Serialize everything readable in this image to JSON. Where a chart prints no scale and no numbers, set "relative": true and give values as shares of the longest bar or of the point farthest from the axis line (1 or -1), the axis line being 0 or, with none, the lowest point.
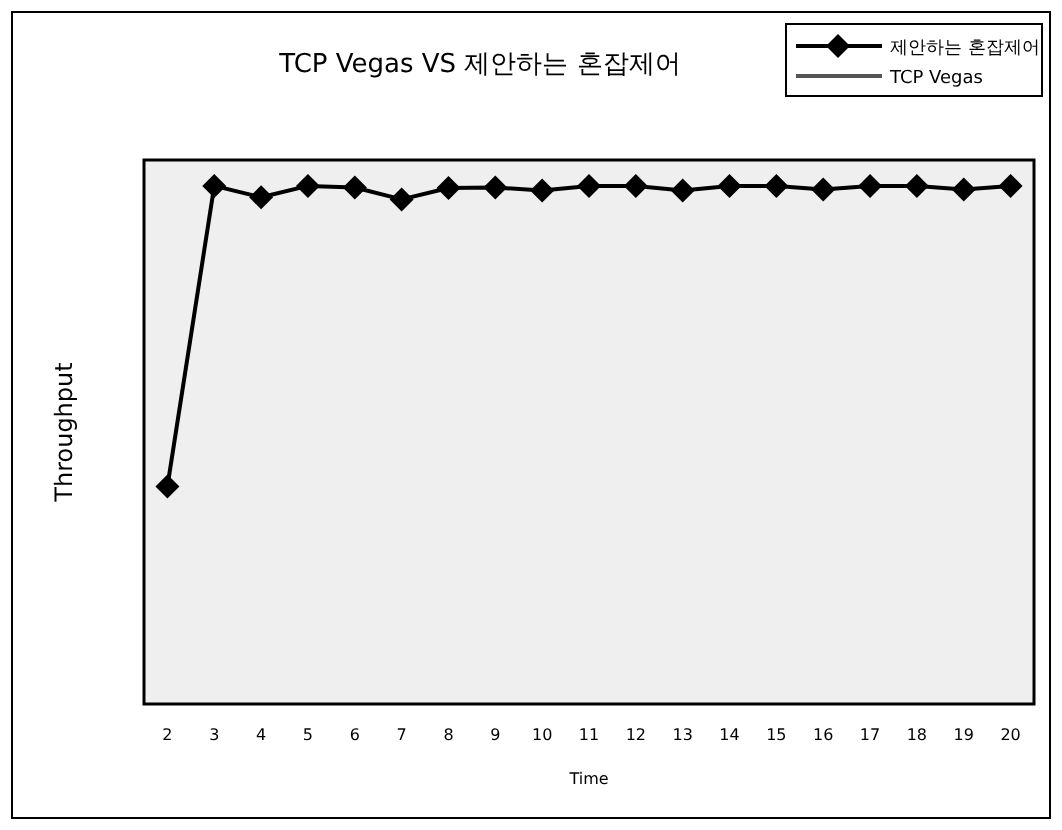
{
  "chart_data": {
    "type": "line",
    "title": "TCP Vegas VS  제안하는 혼잡제어",
    "xlabel": "Time",
    "ylabel": "Throughput",
    "relative": true,
    "legend": "top right",
    "marker": "diamond",
    "line_style": "solid",
    "categories": [
      "2",
      "3",
      "4",
      "5",
      "6",
      "7",
      "8",
      "9",
      "10",
      "11",
      "12",
      "13",
      "14",
      "15",
      "16",
      "17",
      "18",
      "19",
      "20"
    ],
    "series": [
      {
        "name": "제안하는 혼잡제어",
        "color": "#000000",
        "values": [
          0.42,
          1,
          0.978,
          1,
          0.997,
          0.974,
          0.996,
          0.997,
          0.991,
          1,
          1,
          0.991,
          1,
          1,
          0.993,
          1,
          1,
          0.993,
          1
        ]
      },
      {
        "name": "TCP Vegas",
        "color": "#555555",
        "marker": "none",
        "values": [
          null,
          null,
          null,
          null,
          null,
          null,
          null,
          null,
          null,
          null,
          null,
          null,
          null,
          null,
          null,
          null,
          null,
          null,
          null
        ]
      }
    ]
  }
}
